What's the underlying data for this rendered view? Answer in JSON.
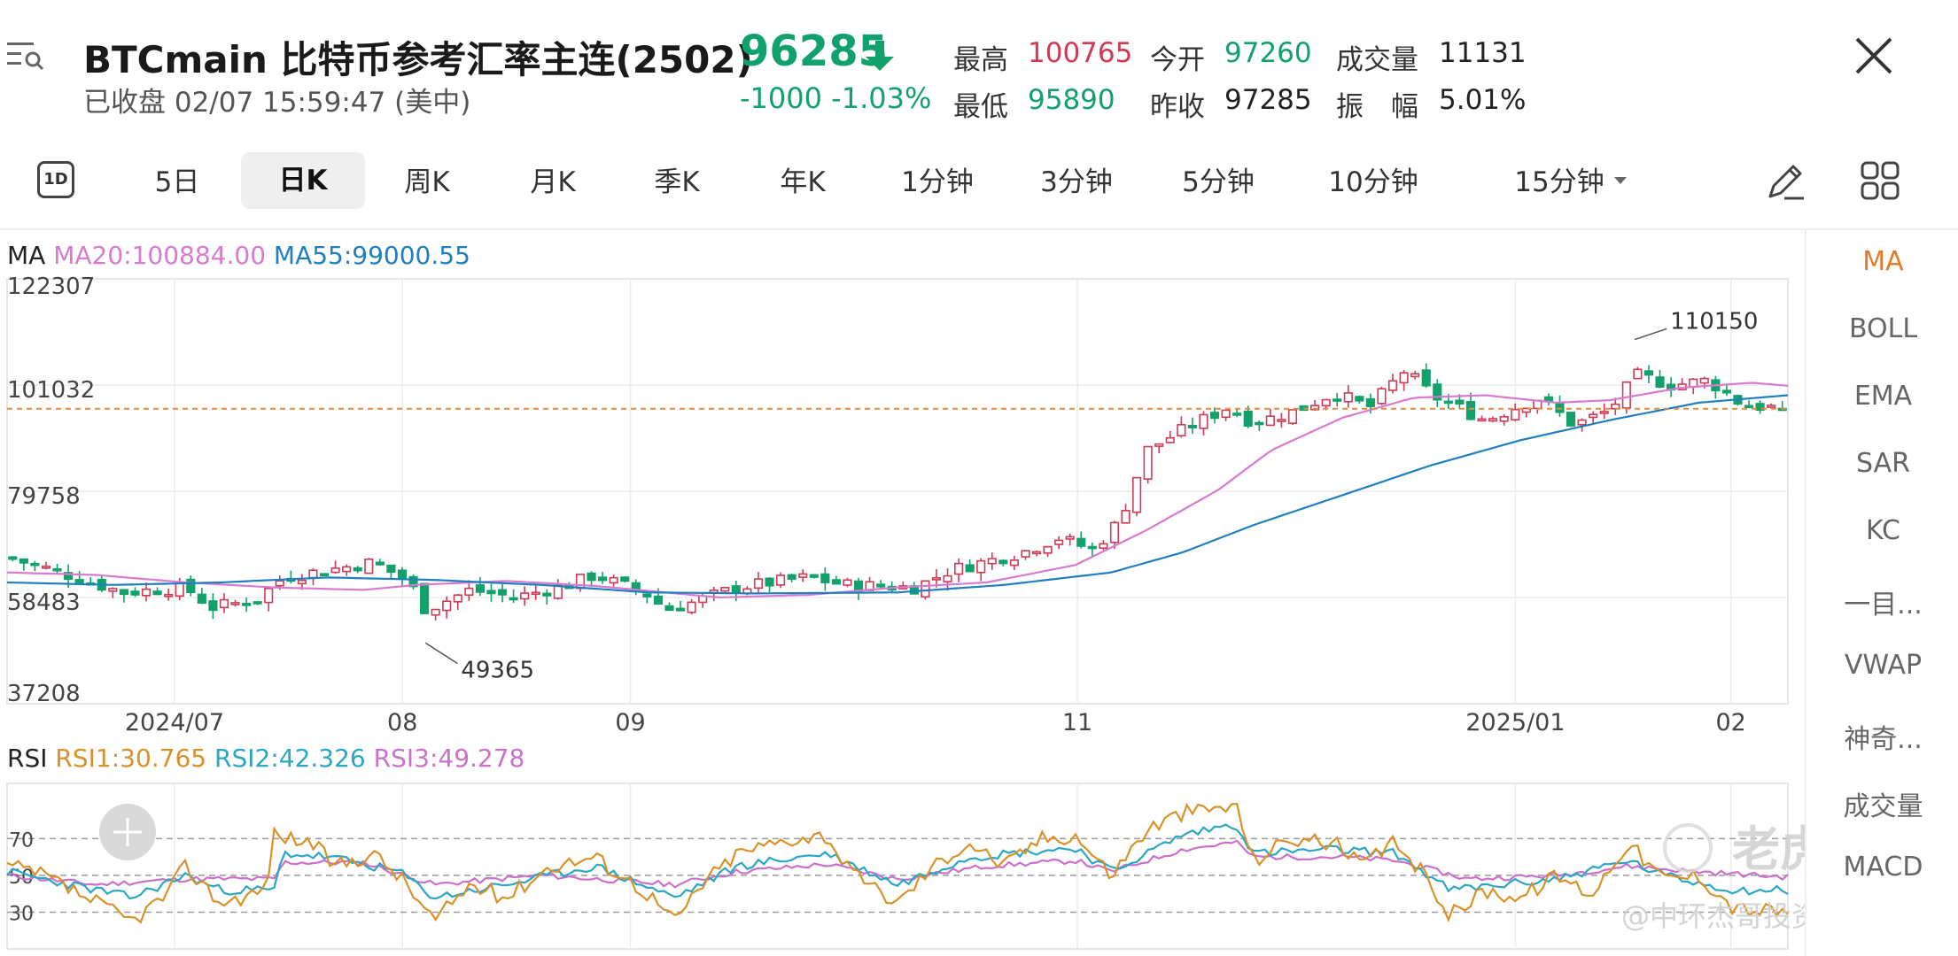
{
  "header": {
    "title": "BTCmain  比特币参考汇率主连(2502)",
    "status": "已收盘 02/07 15:59:47 (美中)",
    "price": "96285",
    "change": "-1000  -1.03%",
    "stats": [
      {
        "label": "最高",
        "value": "100765",
        "tone": "red"
      },
      {
        "label": "今开",
        "value": "97260",
        "tone": "green"
      },
      {
        "label": "成交量",
        "value": "11131",
        "tone": "black"
      },
      {
        "label": "最低",
        "value": "95890",
        "tone": "green"
      },
      {
        "label": "昨收",
        "value": "97285",
        "tone": "black"
      },
      {
        "label": "振　幅",
        "value": "5.01%",
        "tone": "black"
      }
    ]
  },
  "tabs": [
    {
      "label": "5日"
    },
    {
      "label": "日K",
      "active": true
    },
    {
      "label": "周K"
    },
    {
      "label": "月K"
    },
    {
      "label": "季K"
    },
    {
      "label": "年K"
    },
    {
      "label": "1分钟"
    },
    {
      "label": "3分钟"
    },
    {
      "label": "5分钟"
    },
    {
      "label": "10分钟"
    },
    {
      "label": "15分钟"
    }
  ],
  "icons": {
    "tab_1d": "1D",
    "menu": "menu-search-icon",
    "close": "close-icon",
    "pencil": "pencil-icon",
    "grid": "grid-icon"
  },
  "ma_legend": {
    "label": "MA",
    "ma20": "MA20:100884.00",
    "ma55": "MA55:99000.55"
  },
  "rsi_legend": {
    "label": "RSI",
    "rsi1": "RSI1:30.765",
    "rsi2": "RSI2:42.326",
    "rsi3": "RSI3:49.278"
  },
  "side_panel": [
    "MA",
    "BOLL",
    "EMA",
    "SAR",
    "KC",
    "一目...",
    "VWAP",
    "神奇...",
    "成交量",
    "MACD"
  ],
  "watermark": {
    "brand": "老虎社区",
    "handle": "@中环杰哥投资探秘"
  },
  "colors": {
    "up": "#d03a55",
    "down": "#12a16b",
    "ma20": "#d77ad0",
    "ma55": "#1f7fbf",
    "rsi1": "#d9922a",
    "rsi2": "#2aa7c4",
    "rsi3": "#cc70cc",
    "last_price_line": "#e88a3a"
  },
  "chart_data": [
    {
      "type": "candlestick",
      "y_ticks": [
        "122307",
        "101032",
        "79758",
        "58483",
        "37208"
      ],
      "ylim": [
        37208,
        122307
      ],
      "x_tick_labels": [
        "2024/07",
        "08",
        "09",
        "11",
        "2025/01",
        "02"
      ],
      "x_tick_positions": [
        0.094,
        0.222,
        0.35,
        0.601,
        0.847,
        0.968
      ],
      "annotations": [
        {
          "label": "110150",
          "value": 110150,
          "pos": 0.914
        },
        {
          "label": "49365",
          "value": 49365,
          "pos": 0.235
        }
      ],
      "last_price": 96285,
      "anchors": [
        [
          0,
          66500
        ],
        [
          0.03,
          63500
        ],
        [
          0.065,
          59500
        ],
        [
          0.1,
          60500
        ],
        [
          0.115,
          56500
        ],
        [
          0.14,
          58000
        ],
        [
          0.155,
          62500
        ],
        [
          0.18,
          64000
        ],
        [
          0.205,
          65500
        ],
        [
          0.225,
          62000
        ],
        [
          0.235,
          56000
        ],
        [
          0.26,
          60000
        ],
        [
          0.285,
          58500
        ],
        [
          0.315,
          61000
        ],
        [
          0.33,
          63000
        ],
        [
          0.36,
          59000
        ],
        [
          0.37,
          56000
        ],
        [
          0.385,
          57500
        ],
        [
          0.41,
          60500
        ],
        [
          0.45,
          62500
        ],
        [
          0.47,
          61000
        ],
        [
          0.51,
          60500
        ],
        [
          0.53,
          64000
        ],
        [
          0.57,
          67500
        ],
        [
          0.59,
          70500
        ],
        [
          0.61,
          68000
        ],
        [
          0.625,
          74000
        ],
        [
          0.64,
          88000
        ],
        [
          0.66,
          92000
        ],
        [
          0.685,
          96500
        ],
        [
          0.7,
          93500
        ],
        [
          0.725,
          96000
        ],
        [
          0.745,
          99500
        ],
        [
          0.765,
          96500
        ],
        [
          0.785,
          104000
        ],
        [
          0.8,
          99000
        ],
        [
          0.83,
          94000
        ],
        [
          0.86,
          98500
        ],
        [
          0.88,
          93000
        ],
        [
          0.9,
          96000
        ],
        [
          0.915,
          103000
        ],
        [
          0.935,
          101000
        ],
        [
          0.955,
          102000
        ],
        [
          0.975,
          97000
        ],
        [
          1.0,
          96285
        ]
      ],
      "ma20_anchors": [
        [
          0,
          63500
        ],
        [
          0.05,
          63000
        ],
        [
          0.1,
          61500
        ],
        [
          0.15,
          60500
        ],
        [
          0.2,
          60000
        ],
        [
          0.23,
          61000
        ],
        [
          0.28,
          61800
        ],
        [
          0.33,
          60800
        ],
        [
          0.4,
          58500
        ],
        [
          0.45,
          59000
        ],
        [
          0.5,
          60500
        ],
        [
          0.55,
          61500
        ],
        [
          0.6,
          65000
        ],
        [
          0.64,
          72000
        ],
        [
          0.68,
          80000
        ],
        [
          0.71,
          88000
        ],
        [
          0.75,
          94500
        ],
        [
          0.79,
          98500
        ],
        [
          0.83,
          99000
        ],
        [
          0.87,
          97500
        ],
        [
          0.9,
          98000
        ],
        [
          0.94,
          100500
        ],
        [
          0.98,
          101500
        ],
        [
          1.0,
          100884
        ]
      ],
      "ma55_anchors": [
        [
          0,
          61500
        ],
        [
          0.06,
          61000
        ],
        [
          0.12,
          61500
        ],
        [
          0.18,
          62500
        ],
        [
          0.24,
          62000
        ],
        [
          0.3,
          61000
        ],
        [
          0.36,
          59500
        ],
        [
          0.42,
          59300
        ],
        [
          0.5,
          59500
        ],
        [
          0.56,
          61000
        ],
        [
          0.62,
          63500
        ],
        [
          0.66,
          67500
        ],
        [
          0.7,
          73000
        ],
        [
          0.75,
          79000
        ],
        [
          0.8,
          85000
        ],
        [
          0.85,
          90000
        ],
        [
          0.9,
          94000
        ],
        [
          0.95,
          97500
        ],
        [
          1.0,
          99000
        ]
      ]
    },
    {
      "type": "line",
      "y_ticks": [
        "70",
        "50",
        "30"
      ],
      "ylim": [
        10,
        100
      ],
      "rsi1_anchors": [
        [
          0,
          55
        ],
        [
          0.02,
          50
        ],
        [
          0.05,
          35
        ],
        [
          0.07,
          25
        ],
        [
          0.09,
          40
        ],
        [
          0.1,
          55
        ],
        [
          0.12,
          35
        ],
        [
          0.145,
          42
        ],
        [
          0.15,
          72
        ],
        [
          0.17,
          68
        ],
        [
          0.185,
          55
        ],
        [
          0.205,
          62
        ],
        [
          0.22,
          50
        ],
        [
          0.24,
          25
        ],
        [
          0.26,
          45
        ],
        [
          0.28,
          38
        ],
        [
          0.305,
          55
        ],
        [
          0.33,
          60
        ],
        [
          0.36,
          40
        ],
        [
          0.375,
          25
        ],
        [
          0.39,
          45
        ],
        [
          0.41,
          62
        ],
        [
          0.44,
          70
        ],
        [
          0.46,
          72
        ],
        [
          0.475,
          50
        ],
        [
          0.5,
          35
        ],
        [
          0.52,
          55
        ],
        [
          0.54,
          68
        ],
        [
          0.56,
          55
        ],
        [
          0.58,
          70
        ],
        [
          0.6,
          72
        ],
        [
          0.62,
          50
        ],
        [
          0.64,
          75
        ],
        [
          0.66,
          84
        ],
        [
          0.69,
          88
        ],
        [
          0.7,
          58
        ],
        [
          0.72,
          70
        ],
        [
          0.745,
          68
        ],
        [
          0.76,
          55
        ],
        [
          0.78,
          68
        ],
        [
          0.8,
          45
        ],
        [
          0.81,
          28
        ],
        [
          0.83,
          42
        ],
        [
          0.85,
          38
        ],
        [
          0.87,
          50
        ],
        [
          0.89,
          40
        ],
        [
          0.91,
          68
        ],
        [
          0.93,
          48
        ],
        [
          0.95,
          50
        ],
        [
          0.97,
          32
        ],
        [
          1.0,
          30
        ]
      ],
      "rsi2_anchors": [
        [
          0,
          52
        ],
        [
          0.05,
          42
        ],
        [
          0.07,
          38
        ],
        [
          0.1,
          50
        ],
        [
          0.12,
          42
        ],
        [
          0.15,
          42
        ],
        [
          0.155,
          62
        ],
        [
          0.18,
          60
        ],
        [
          0.22,
          52
        ],
        [
          0.24,
          38
        ],
        [
          0.28,
          45
        ],
        [
          0.33,
          55
        ],
        [
          0.375,
          38
        ],
        [
          0.41,
          55
        ],
        [
          0.46,
          62
        ],
        [
          0.5,
          45
        ],
        [
          0.54,
          60
        ],
        [
          0.6,
          65
        ],
        [
          0.62,
          52
        ],
        [
          0.66,
          72
        ],
        [
          0.69,
          78
        ],
        [
          0.7,
          62
        ],
        [
          0.745,
          64
        ],
        [
          0.78,
          62
        ],
        [
          0.81,
          42
        ],
        [
          0.87,
          48
        ],
        [
          0.91,
          58
        ],
        [
          0.93,
          50
        ],
        [
          0.97,
          42
        ],
        [
          1.0,
          42
        ]
      ],
      "rsi3_anchors": [
        [
          0,
          50
        ],
        [
          0.05,
          45
        ],
        [
          0.1,
          48
        ],
        [
          0.15,
          48
        ],
        [
          0.155,
          57
        ],
        [
          0.2,
          57
        ],
        [
          0.24,
          45
        ],
        [
          0.3,
          50
        ],
        [
          0.375,
          45
        ],
        [
          0.41,
          52
        ],
        [
          0.46,
          56
        ],
        [
          0.5,
          48
        ],
        [
          0.55,
          55
        ],
        [
          0.6,
          58
        ],
        [
          0.62,
          52
        ],
        [
          0.66,
          64
        ],
        [
          0.69,
          68
        ],
        [
          0.7,
          60
        ],
        [
          0.75,
          60
        ],
        [
          0.78,
          58
        ],
        [
          0.82,
          48
        ],
        [
          0.87,
          50
        ],
        [
          0.91,
          55
        ],
        [
          0.95,
          52
        ],
        [
          1.0,
          49
        ]
      ]
    }
  ]
}
